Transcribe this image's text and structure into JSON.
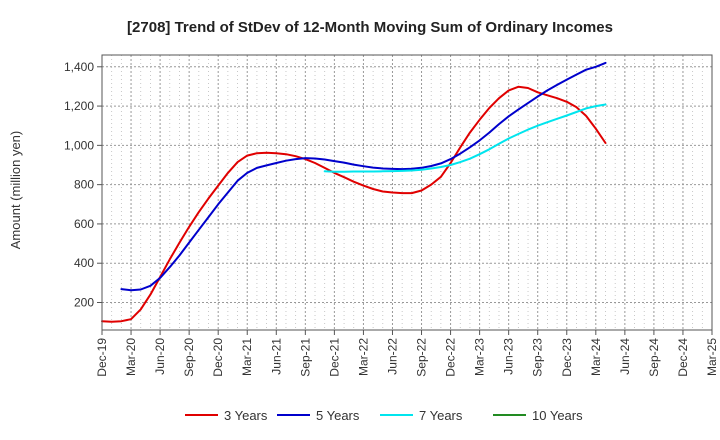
{
  "chart_data": {
    "type": "line",
    "title": "[2708]  Trend of StDev of 12-Month Moving Sum of Ordinary Incomes",
    "xlabel": "",
    "ylabel": "Amount (million yen)",
    "ylim": [
      60,
      1460
    ],
    "yticks": [
      200,
      400,
      600,
      800,
      1000,
      1200,
      1400
    ],
    "ytick_labels": [
      "200",
      "400",
      "600",
      "800",
      "1,000",
      "1,200",
      "1,400"
    ],
    "x_range": [
      0,
      63
    ],
    "xticks": [
      0,
      3,
      6,
      9,
      12,
      15,
      18,
      21,
      24,
      27,
      30,
      33,
      36,
      39,
      42,
      45,
      48,
      51,
      54,
      57,
      60,
      63
    ],
    "xtick_labels": [
      "Dec-19",
      "Mar-20",
      "Jun-20",
      "Sep-20",
      "Dec-20",
      "Mar-21",
      "Jun-21",
      "Sep-21",
      "Dec-21",
      "Mar-22",
      "Jun-22",
      "Sep-22",
      "Dec-22",
      "Mar-23",
      "Jun-23",
      "Sep-23",
      "Dec-23",
      "Mar-24",
      "Jun-24",
      "Sep-24",
      "Dec-24",
      "Mar-25"
    ],
    "grid": true,
    "legend_position": "bottom",
    "series": [
      {
        "name": "3 Years",
        "color": "#e00000",
        "points": [
          [
            0,
            105
          ],
          [
            1,
            102
          ],
          [
            2,
            105
          ],
          [
            3,
            115
          ],
          [
            4,
            165
          ],
          [
            5,
            240
          ],
          [
            6,
            330
          ],
          [
            7,
            420
          ],
          [
            8,
            505
          ],
          [
            9,
            585
          ],
          [
            10,
            660
          ],
          [
            11,
            730
          ],
          [
            12,
            795
          ],
          [
            13,
            860
          ],
          [
            14,
            915
          ],
          [
            15,
            948
          ],
          [
            16,
            960
          ],
          [
            17,
            962
          ],
          [
            18,
            960
          ],
          [
            19,
            955
          ],
          [
            20,
            945
          ],
          [
            21,
            930
          ],
          [
            22,
            910
          ],
          [
            23,
            885
          ],
          [
            24,
            860
          ],
          [
            25,
            838
          ],
          [
            26,
            815
          ],
          [
            27,
            795
          ],
          [
            28,
            778
          ],
          [
            29,
            765
          ],
          [
            30,
            760
          ],
          [
            31,
            757
          ],
          [
            32,
            757
          ],
          [
            33,
            770
          ],
          [
            34,
            800
          ],
          [
            35,
            840
          ],
          [
            36,
            910
          ],
          [
            37,
            990
          ],
          [
            38,
            1065
          ],
          [
            39,
            1130
          ],
          [
            40,
            1190
          ],
          [
            41,
            1240
          ],
          [
            42,
            1280
          ],
          [
            43,
            1298
          ],
          [
            44,
            1292
          ],
          [
            45,
            1270
          ],
          [
            46,
            1255
          ],
          [
            47,
            1240
          ],
          [
            48,
            1222
          ],
          [
            49,
            1195
          ],
          [
            50,
            1150
          ],
          [
            51,
            1085
          ],
          [
            52,
            1012
          ]
        ]
      },
      {
        "name": "5 Years",
        "color": "#0000cc",
        "points": [
          [
            2,
            268
          ],
          [
            3,
            262
          ],
          [
            4,
            266
          ],
          [
            5,
            285
          ],
          [
            6,
            325
          ],
          [
            7,
            380
          ],
          [
            8,
            440
          ],
          [
            9,
            505
          ],
          [
            10,
            570
          ],
          [
            11,
            635
          ],
          [
            12,
            700
          ],
          [
            13,
            760
          ],
          [
            14,
            820
          ],
          [
            15,
            860
          ],
          [
            16,
            885
          ],
          [
            17,
            898
          ],
          [
            18,
            910
          ],
          [
            19,
            922
          ],
          [
            20,
            930
          ],
          [
            21,
            935
          ],
          [
            22,
            933
          ],
          [
            23,
            928
          ],
          [
            24,
            920
          ],
          [
            25,
            912
          ],
          [
            26,
            902
          ],
          [
            27,
            894
          ],
          [
            28,
            887
          ],
          [
            29,
            882
          ],
          [
            30,
            880
          ],
          [
            31,
            879
          ],
          [
            32,
            881
          ],
          [
            33,
            886
          ],
          [
            34,
            895
          ],
          [
            35,
            908
          ],
          [
            36,
            930
          ],
          [
            37,
            958
          ],
          [
            38,
            990
          ],
          [
            39,
            1025
          ],
          [
            40,
            1065
          ],
          [
            41,
            1108
          ],
          [
            42,
            1148
          ],
          [
            43,
            1182
          ],
          [
            44,
            1215
          ],
          [
            45,
            1248
          ],
          [
            46,
            1280
          ],
          [
            47,
            1308
          ],
          [
            48,
            1335
          ],
          [
            49,
            1360
          ],
          [
            50,
            1385
          ],
          [
            51,
            1400
          ],
          [
            52,
            1420
          ]
        ]
      },
      {
        "name": "7 Years",
        "color": "#00e5ee",
        "points": [
          [
            23,
            868
          ],
          [
            24,
            866
          ],
          [
            25,
            866
          ],
          [
            26,
            867
          ],
          [
            27,
            867
          ],
          [
            28,
            867
          ],
          [
            29,
            868
          ],
          [
            30,
            869
          ],
          [
            31,
            870
          ],
          [
            32,
            872
          ],
          [
            33,
            876
          ],
          [
            34,
            882
          ],
          [
            35,
            890
          ],
          [
            36,
            900
          ],
          [
            37,
            915
          ],
          [
            38,
            932
          ],
          [
            39,
            955
          ],
          [
            40,
            980
          ],
          [
            41,
            1008
          ],
          [
            42,
            1035
          ],
          [
            43,
            1058
          ],
          [
            44,
            1080
          ],
          [
            45,
            1100
          ],
          [
            46,
            1118
          ],
          [
            47,
            1135
          ],
          [
            48,
            1152
          ],
          [
            49,
            1170
          ],
          [
            50,
            1188
          ],
          [
            51,
            1200
          ],
          [
            52,
            1208
          ]
        ]
      },
      {
        "name": "10 Years",
        "color": "#228b22",
        "points": []
      }
    ]
  }
}
